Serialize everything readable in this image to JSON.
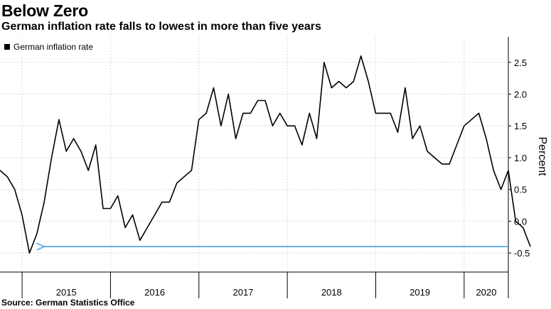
{
  "title": "Below Zero",
  "subtitle": "German inflation rate falls to lowest in more than five years",
  "source": "Source: German Statistics Office",
  "chart_data": {
    "type": "line",
    "title": "Below Zero",
    "subtitle": "German inflation rate falls to lowest in more than five years",
    "ylabel": "Percent",
    "xlabel": "",
    "ylim": [
      -0.8,
      2.9
    ],
    "yticks": [
      -0.5,
      0.0,
      0.5,
      1.0,
      1.5,
      2.0,
      2.5
    ],
    "ytick_labels": [
      "-0.5",
      "0.0",
      "0.5",
      "1.0",
      "1.5",
      "2.0",
      "2.5"
    ],
    "xlim": [
      2014.417,
      2020.167
    ],
    "year_labels": [
      "2015",
      "2016",
      "2017",
      "2018",
      "2019",
      "2020"
    ],
    "year_boundaries": [
      2014.667,
      2015.667,
      2016.667,
      2017.667,
      2018.667,
      2019.667
    ],
    "legend": "top-left",
    "series": [
      {
        "name": "German inflation rate",
        "color": "#000000",
        "start": "2014-06",
        "interval": "month",
        "values": [
          0.8,
          0.7,
          0.5,
          0.1,
          -0.5,
          -0.2,
          0.3,
          1.0,
          1.6,
          1.1,
          1.3,
          1.1,
          0.8,
          1.2,
          0.2,
          0.2,
          0.4,
          -0.1,
          0.1,
          -0.3,
          -0.1,
          0.1,
          0.3,
          0.3,
          0.6,
          0.7,
          0.8,
          1.6,
          1.7,
          2.1,
          1.5,
          2.0,
          1.3,
          1.7,
          1.7,
          1.9,
          1.9,
          1.5,
          1.7,
          1.5,
          1.5,
          1.2,
          1.7,
          1.3,
          2.5,
          2.1,
          2.2,
          2.1,
          2.2,
          2.6,
          2.2,
          1.7,
          1.7,
          1.7,
          1.4,
          2.1,
          1.3,
          1.5,
          1.1,
          1.0,
          0.9,
          0.9,
          1.2,
          1.5,
          1.6,
          1.7,
          1.3,
          0.8,
          0.5,
          0.8,
          0.0,
          -0.1,
          -0.4
        ]
      }
    ],
    "annotations": [
      {
        "type": "arrow",
        "from_x": 2020.167,
        "to_x": 2014.917,
        "y": -0.4,
        "color": "#4a9fe0"
      }
    ]
  }
}
